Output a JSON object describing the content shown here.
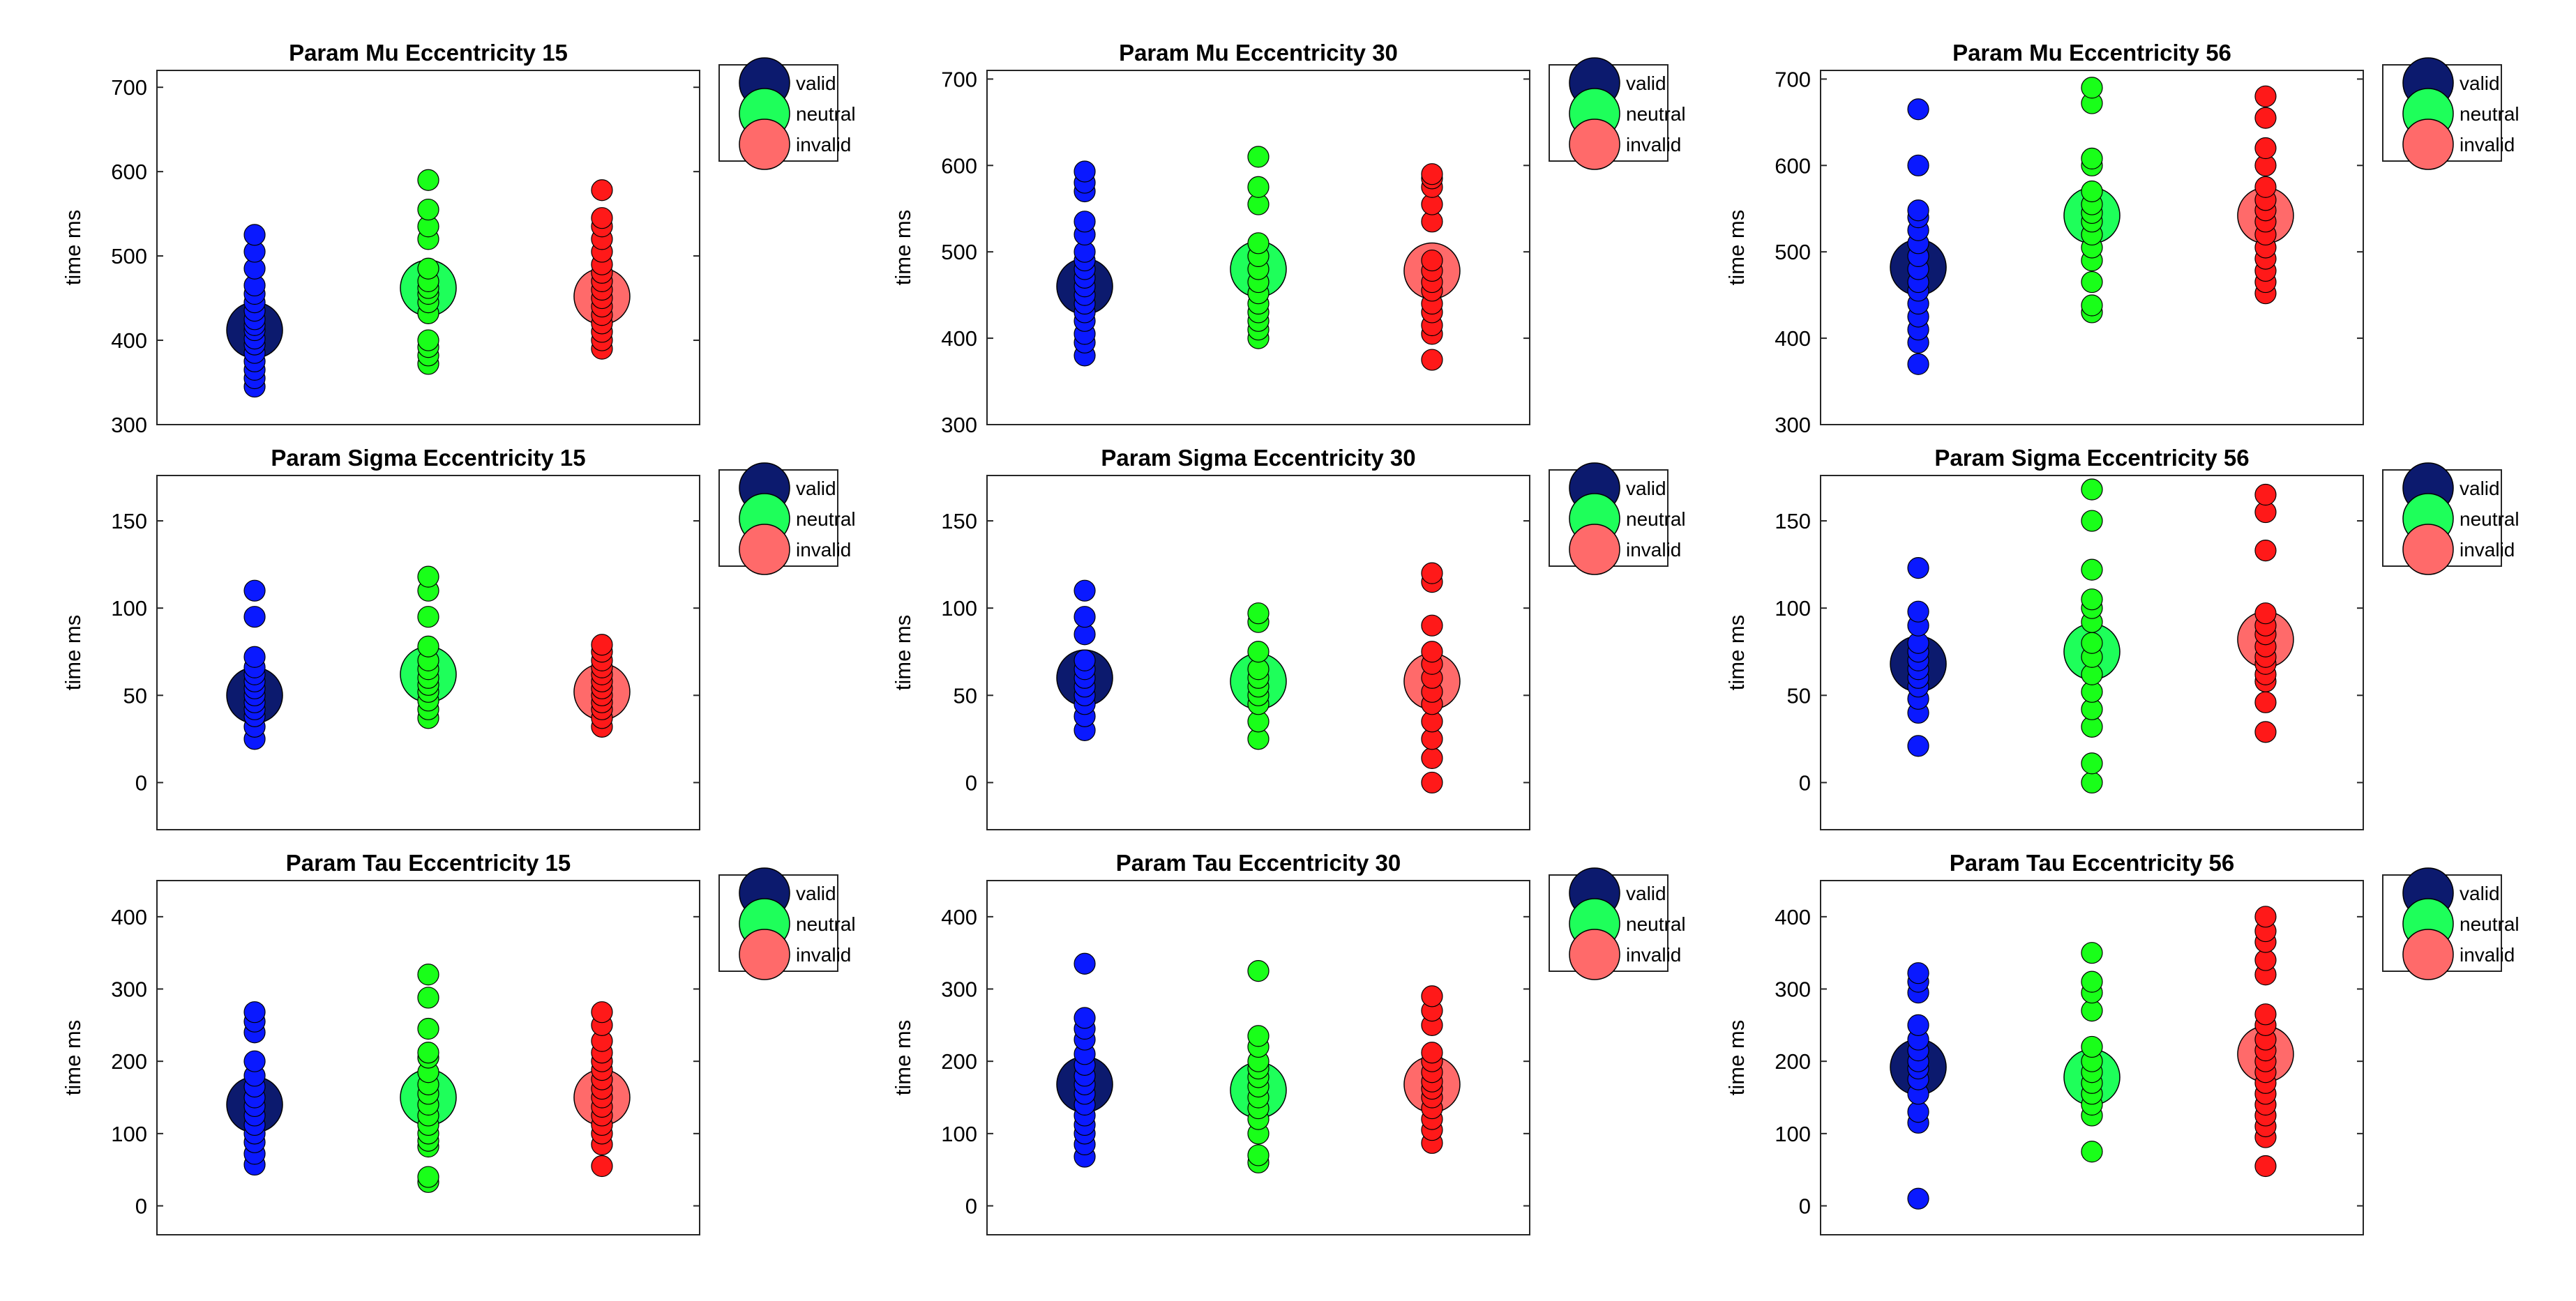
{
  "chart_data": [
    {
      "type": "scatter",
      "title": "Param Mu Eccentricity 15",
      "ylabel": "time ms",
      "xlabel": "",
      "ylim": [
        300,
        720
      ],
      "yticks": [
        300,
        400,
        500,
        600,
        700
      ],
      "groups": [
        {
          "name": "valid",
          "mean": 412,
          "points": [
            345,
            355,
            365,
            375,
            385,
            395,
            402,
            412,
            418,
            425,
            435,
            445,
            455,
            465,
            485,
            505,
            525
          ]
        },
        {
          "name": "neutral",
          "mean": 462,
          "points": [
            372,
            382,
            392,
            400,
            432,
            445,
            455,
            462,
            470,
            485,
            520,
            535,
            555,
            590
          ]
        },
        {
          "name": "invalid",
          "mean": 452,
          "points": [
            390,
            400,
            410,
            420,
            430,
            440,
            450,
            460,
            470,
            480,
            490,
            505,
            520,
            535,
            545,
            578
          ]
        }
      ]
    },
    {
      "type": "scatter",
      "title": "Param Mu Eccentricity 30",
      "ylabel": "time ms",
      "xlabel": "",
      "ylim": [
        300,
        710
      ],
      "yticks": [
        300,
        400,
        500,
        600,
        700
      ],
      "groups": [
        {
          "name": "valid",
          "mean": 460,
          "points": [
            380,
            395,
            405,
            420,
            430,
            440,
            450,
            460,
            470,
            480,
            490,
            500,
            520,
            535,
            570,
            580,
            593
          ]
        },
        {
          "name": "neutral",
          "mean": 480,
          "points": [
            400,
            410,
            420,
            430,
            440,
            452,
            465,
            480,
            495,
            510,
            555,
            575,
            610
          ]
        },
        {
          "name": "invalid",
          "mean": 478,
          "points": [
            375,
            405,
            415,
            430,
            440,
            455,
            465,
            478,
            490,
            535,
            555,
            575,
            585,
            590
          ]
        }
      ]
    },
    {
      "type": "scatter",
      "title": "Param Mu Eccentricity 56",
      "ylabel": "time ms",
      "xlabel": "",
      "ylim": [
        300,
        710
      ],
      "yticks": [
        300,
        400,
        500,
        600,
        700
      ],
      "groups": [
        {
          "name": "valid",
          "mean": 482,
          "points": [
            370,
            395,
            410,
            425,
            440,
            455,
            465,
            480,
            495,
            510,
            525,
            540,
            548,
            600,
            665
          ]
        },
        {
          "name": "neutral",
          "mean": 542,
          "points": [
            430,
            438,
            465,
            490,
            505,
            520,
            535,
            545,
            555,
            570,
            600,
            608,
            672,
            690
          ]
        },
        {
          "name": "invalid",
          "mean": 542,
          "points": [
            452,
            465,
            478,
            492,
            505,
            520,
            535,
            548,
            560,
            575,
            600,
            620,
            655,
            680
          ]
        }
      ]
    },
    {
      "type": "scatter",
      "title": "Param Sigma Eccentricity 15",
      "ylabel": "time ms",
      "xlabel": "",
      "ylim": [
        -27,
        176
      ],
      "yticks": [
        0,
        50,
        100,
        150
      ],
      "groups": [
        {
          "name": "valid",
          "mean": 50,
          "points": [
            25,
            32,
            38,
            42,
            46,
            50,
            54,
            58,
            62,
            66,
            72,
            95,
            110
          ]
        },
        {
          "name": "neutral",
          "mean": 62,
          "points": [
            37,
            42,
            47,
            52,
            56,
            60,
            65,
            70,
            78,
            95,
            110,
            118
          ]
        },
        {
          "name": "invalid",
          "mean": 52,
          "points": [
            32,
            37,
            42,
            46,
            50,
            54,
            58,
            62,
            66,
            70,
            75,
            79
          ]
        }
      ]
    },
    {
      "type": "scatter",
      "title": "Param Sigma Eccentricity 30",
      "ylabel": "time ms",
      "xlabel": "",
      "ylim": [
        -27,
        176
      ],
      "yticks": [
        0,
        50,
        100,
        150
      ],
      "groups": [
        {
          "name": "valid",
          "mean": 60,
          "points": [
            30,
            38,
            45,
            50,
            55,
            60,
            65,
            70,
            85,
            95,
            110
          ]
        },
        {
          "name": "neutral",
          "mean": 58,
          "points": [
            25,
            35,
            45,
            50,
            55,
            60,
            65,
            75,
            92,
            97
          ]
        },
        {
          "name": "invalid",
          "mean": 58,
          "points": [
            0,
            14,
            25,
            35,
            45,
            52,
            60,
            68,
            75,
            90,
            115,
            120
          ]
        }
      ]
    },
    {
      "type": "scatter",
      "title": "Param Sigma Eccentricity 56",
      "ylabel": "time ms",
      "xlabel": "",
      "ylim": [
        -27,
        176
      ],
      "yticks": [
        0,
        50,
        100,
        150
      ],
      "groups": [
        {
          "name": "valid",
          "mean": 68,
          "points": [
            21,
            40,
            48,
            55,
            60,
            65,
            70,
            75,
            80,
            90,
            98,
            123
          ]
        },
        {
          "name": "neutral",
          "mean": 75,
          "points": [
            0,
            11,
            32,
            42,
            52,
            62,
            72,
            80,
            92,
            100,
            105,
            122,
            150,
            168
          ]
        },
        {
          "name": "invalid",
          "mean": 82,
          "points": [
            29,
            46,
            58,
            62,
            68,
            72,
            78,
            85,
            90,
            97,
            133,
            155,
            165
          ]
        }
      ]
    },
    {
      "type": "scatter",
      "title": "Param Tau Eccentricity 15",
      "ylabel": "time ms",
      "xlabel": "",
      "ylim": [
        -40,
        450
      ],
      "yticks": [
        0,
        100,
        200,
        300,
        400
      ],
      "groups": [
        {
          "name": "valid",
          "mean": 140,
          "points": [
            57,
            72,
            88,
            100,
            112,
            125,
            138,
            150,
            165,
            180,
            200,
            240,
            255,
            268
          ]
        },
        {
          "name": "neutral",
          "mean": 150,
          "points": [
            33,
            40,
            82,
            90,
            100,
            112,
            125,
            140,
            155,
            168,
            185,
            205,
            212,
            245,
            288,
            320
          ]
        },
        {
          "name": "invalid",
          "mean": 150,
          "points": [
            55,
            85,
            100,
            112,
            125,
            137,
            150,
            162,
            175,
            188,
            200,
            212,
            228,
            250,
            268
          ]
        }
      ]
    },
    {
      "type": "scatter",
      "title": "Param Tau Eccentricity 30",
      "ylabel": "time ms",
      "xlabel": "",
      "ylim": [
        -40,
        450
      ],
      "yticks": [
        0,
        100,
        200,
        300,
        400
      ],
      "groups": [
        {
          "name": "valid",
          "mean": 168,
          "points": [
            68,
            85,
            100,
            112,
            125,
            140,
            155,
            168,
            180,
            195,
            210,
            230,
            245,
            260,
            335
          ]
        },
        {
          "name": "neutral",
          "mean": 160,
          "points": [
            60,
            70,
            100,
            120,
            135,
            150,
            165,
            178,
            190,
            200,
            220,
            235,
            325
          ]
        },
        {
          "name": "invalid",
          "mean": 168,
          "points": [
            87,
            105,
            120,
            135,
            150,
            162,
            172,
            185,
            200,
            212,
            250,
            270,
            290
          ]
        }
      ]
    },
    {
      "type": "scatter",
      "title": "Param Tau Eccentricity 56",
      "ylabel": "time ms",
      "xlabel": "",
      "ylim": [
        -40,
        450
      ],
      "yticks": [
        0,
        100,
        200,
        300,
        400
      ],
      "groups": [
        {
          "name": "valid",
          "mean": 192,
          "points": [
            10,
            115,
            130,
            155,
            175,
            190,
            200,
            215,
            230,
            250,
            295,
            310,
            322
          ]
        },
        {
          "name": "neutral",
          "mean": 178,
          "points": [
            75,
            125,
            140,
            155,
            170,
            185,
            200,
            220,
            270,
            295,
            310,
            350
          ]
        },
        {
          "name": "invalid",
          "mean": 210,
          "points": [
            55,
            95,
            110,
            125,
            140,
            155,
            170,
            185,
            200,
            215,
            230,
            250,
            265,
            320,
            340,
            365,
            380,
            400
          ]
        }
      ]
    }
  ],
  "legend": {
    "items": [
      {
        "label": "valid",
        "color": "#0c1a6e"
      },
      {
        "label": "neutral",
        "color": "#1eff5a"
      },
      {
        "label": "invalid",
        "color": "#ff6a6a"
      }
    ]
  },
  "colors": {
    "valid_point": "#0a19ff",
    "neutral_point": "#19ff19",
    "invalid_point": "#ff1919",
    "valid_mean": "#0c1a6e",
    "neutral_mean": "#1eff5a",
    "invalid_mean": "#ff6a6a"
  }
}
